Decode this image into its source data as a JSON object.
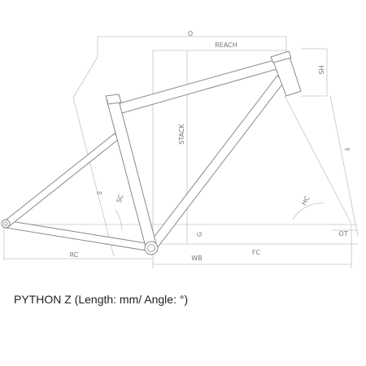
{
  "caption": "PYTHON Z (Length: mm/ Angle: °)",
  "labels": {
    "o": "O",
    "reach": "REACH",
    "hs": "HS",
    "stack": "STACK",
    "f": "F",
    "s": "S",
    "sc": "SC",
    "hc": "HC",
    "g": "G",
    "ot": "OT",
    "rc": "RC",
    "wb": "WB",
    "fc": "FC"
  },
  "colors": {
    "tube_outline": "#8a8a8a",
    "dimension_line": "#c4c4c4",
    "label": "#777777",
    "caption": "#222222"
  }
}
